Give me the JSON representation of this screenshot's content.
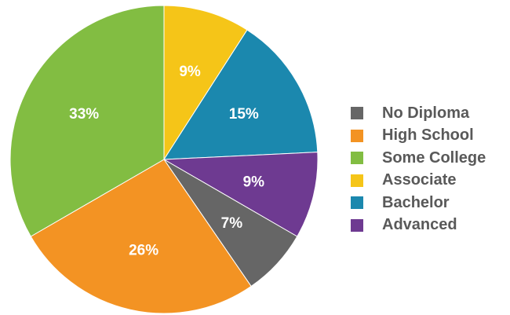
{
  "chart_data": {
    "type": "pie",
    "title": "",
    "legend_position": "right",
    "slices": [
      {
        "name": "No Diploma",
        "value": 7,
        "label": "7%",
        "color": "#666666"
      },
      {
        "name": "High School",
        "value": 26,
        "label": "26%",
        "color": "#F39323"
      },
      {
        "name": "Some College",
        "value": 33,
        "label": "33%",
        "color": "#82BD42"
      },
      {
        "name": "Associate",
        "value": 9,
        "label": "9%",
        "color": "#F5C518"
      },
      {
        "name": "Bachelor",
        "value": 15,
        "label": "15%",
        "color": "#1B88AE"
      },
      {
        "name": "Advanced",
        "value": 9,
        "label": "9%",
        "color": "#6E3A91"
      }
    ]
  }
}
